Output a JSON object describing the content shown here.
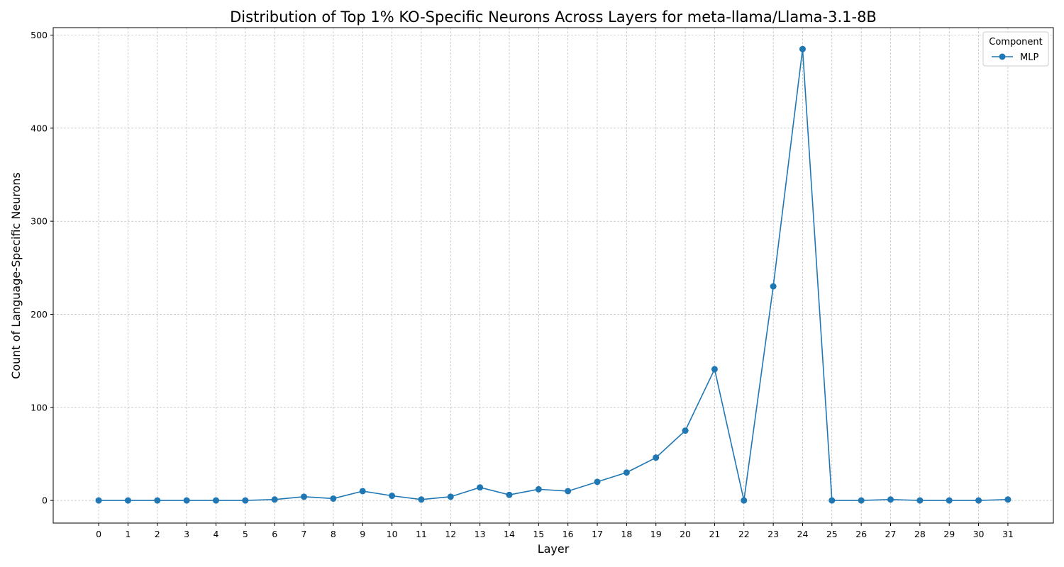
{
  "chart_data": {
    "type": "line",
    "title": "Distribution of Top 1% KO-Specific Neurons Across Layers for meta-llama/Llama-3.1-8B",
    "xlabel": "Layer",
    "ylabel": "Count of Language-Specific Neurons",
    "x": [
      0,
      1,
      2,
      3,
      4,
      5,
      6,
      7,
      8,
      9,
      10,
      11,
      12,
      13,
      14,
      15,
      16,
      17,
      18,
      19,
      20,
      21,
      22,
      23,
      24,
      25,
      26,
      27,
      28,
      29,
      30,
      31
    ],
    "x_tick_labels": [
      "0",
      "1",
      "2",
      "3",
      "4",
      "5",
      "6",
      "7",
      "8",
      "9",
      "10",
      "11",
      "12",
      "13",
      "14",
      "15",
      "16",
      "17",
      "18",
      "19",
      "20",
      "21",
      "22",
      "23",
      "24",
      "25",
      "26",
      "27",
      "28",
      "29",
      "30",
      "31"
    ],
    "y_ticks": [
      0,
      100,
      200,
      300,
      400,
      500
    ],
    "y_tick_labels": [
      "0",
      "100",
      "200",
      "300",
      "400",
      "500"
    ],
    "xlim": [
      -1.55,
      32.55
    ],
    "ylim": [
      -24.3,
      508
    ],
    "grid": true,
    "legend_title": "Component",
    "legend_placement": "top-right",
    "series": [
      {
        "name": "MLP",
        "color": "#1f77b4",
        "marker": "circle",
        "values": [
          0,
          0,
          0,
          0,
          0,
          0,
          1,
          4,
          2,
          10,
          5,
          1,
          4,
          14,
          6,
          12,
          10,
          20,
          30,
          46,
          75,
          141,
          0,
          230,
          485,
          0,
          0,
          1,
          0,
          0,
          0,
          1
        ]
      }
    ]
  }
}
